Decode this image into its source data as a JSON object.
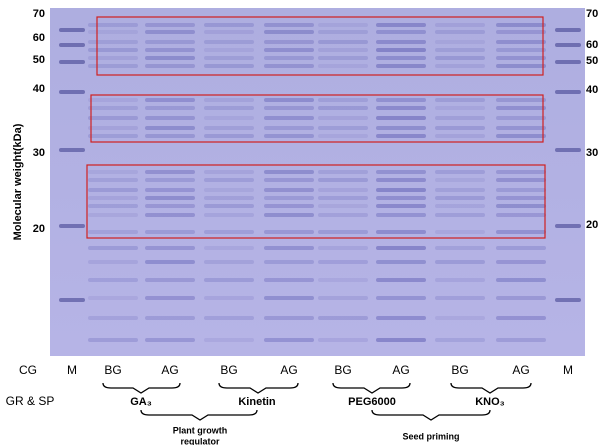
{
  "y_axis_label": "Molecular weight(kDa)",
  "left_markers": [
    "70",
    "60",
    "50",
    "40",
    "30",
    "20"
  ],
  "right_markers": [
    "70",
    "60",
    "50",
    "40",
    "30",
    "20"
  ],
  "cg_row": {
    "label": "CG",
    "lanes": [
      "M",
      "BG",
      "AG",
      "BG",
      "AG",
      "BG",
      "AG",
      "BG",
      "AG",
      "M"
    ]
  },
  "gr_sp_row": {
    "label": "GR & SP",
    "treatments": [
      "GA₃",
      "Kinetin",
      "PEG6000",
      "KNO₃"
    ]
  },
  "groups": [
    {
      "label": [
        "Plant growth",
        "regulator"
      ]
    },
    {
      "label": [
        "Seed priming"
      ]
    }
  ]
}
